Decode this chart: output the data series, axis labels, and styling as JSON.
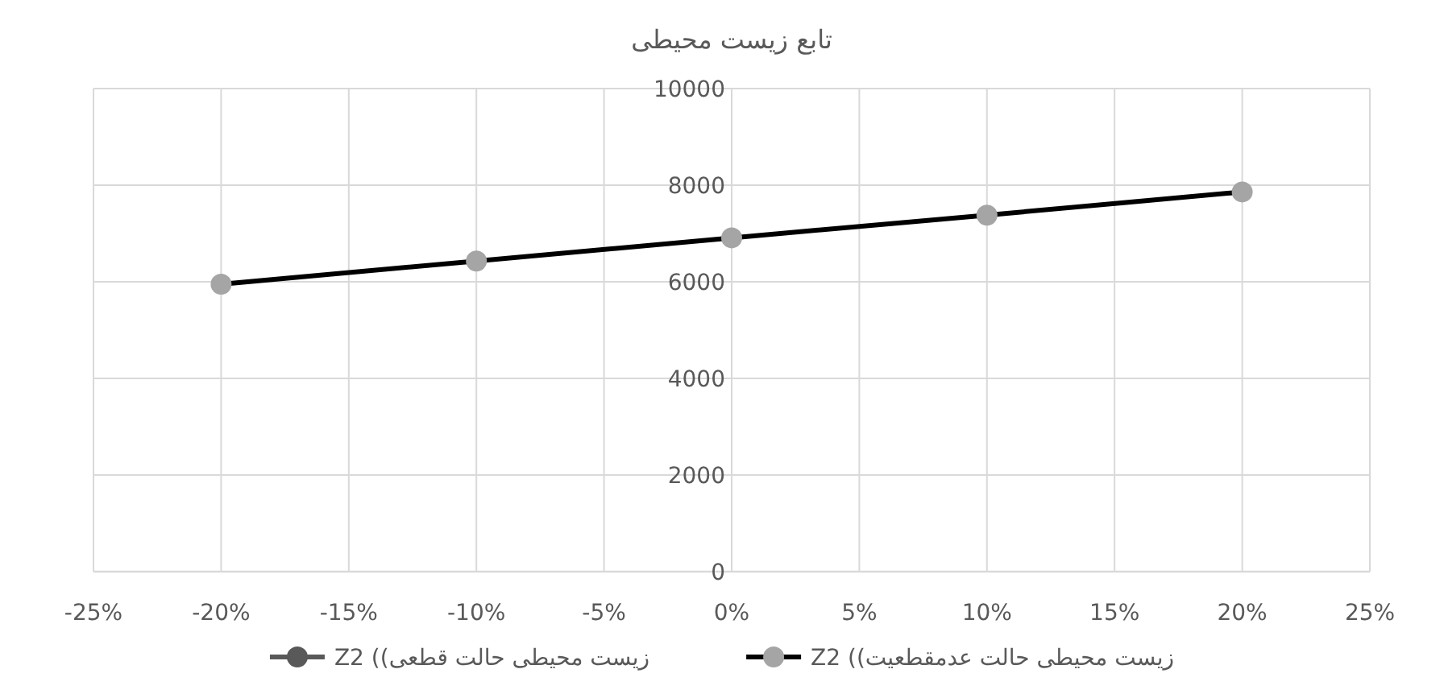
{
  "chart_data": {
    "type": "line",
    "title": "تابع زیست محیطی",
    "x": [
      -20,
      -10,
      0,
      10,
      20
    ],
    "series": [
      {
        "name": "زیست محیطی حالت قطعی)) Z2",
        "color": "#595959",
        "values": [
          null,
          null,
          null,
          null,
          null
        ]
      },
      {
        "name": "زیست محیطی حالت عدمقطعیت)) Z2",
        "color": "#a5a5a5",
        "values": [
          5950,
          6430,
          6910,
          7380,
          7860
        ]
      }
    ],
    "xlim": [
      -25,
      25
    ],
    "xticks": [
      {
        "value": -25,
        "label": "-25%"
      },
      {
        "value": -20,
        "label": "-20%"
      },
      {
        "value": -15,
        "label": "-15%"
      },
      {
        "value": -10,
        "label": "-10%"
      },
      {
        "value": -5,
        "label": "-5%"
      },
      {
        "value": 0,
        "label": "0%"
      },
      {
        "value": 5,
        "label": "5%"
      },
      {
        "value": 10,
        "label": "10%"
      },
      {
        "value": 15,
        "label": "15%"
      },
      {
        "value": 20,
        "label": "20%"
      },
      {
        "value": 25,
        "label": "25%"
      }
    ],
    "ylim": [
      0,
      10000
    ],
    "yticks": [
      0,
      2000,
      4000,
      6000,
      8000,
      10000
    ],
    "grid": true,
    "legend": "bottom",
    "marker": "circle",
    "line_style": "solid"
  }
}
